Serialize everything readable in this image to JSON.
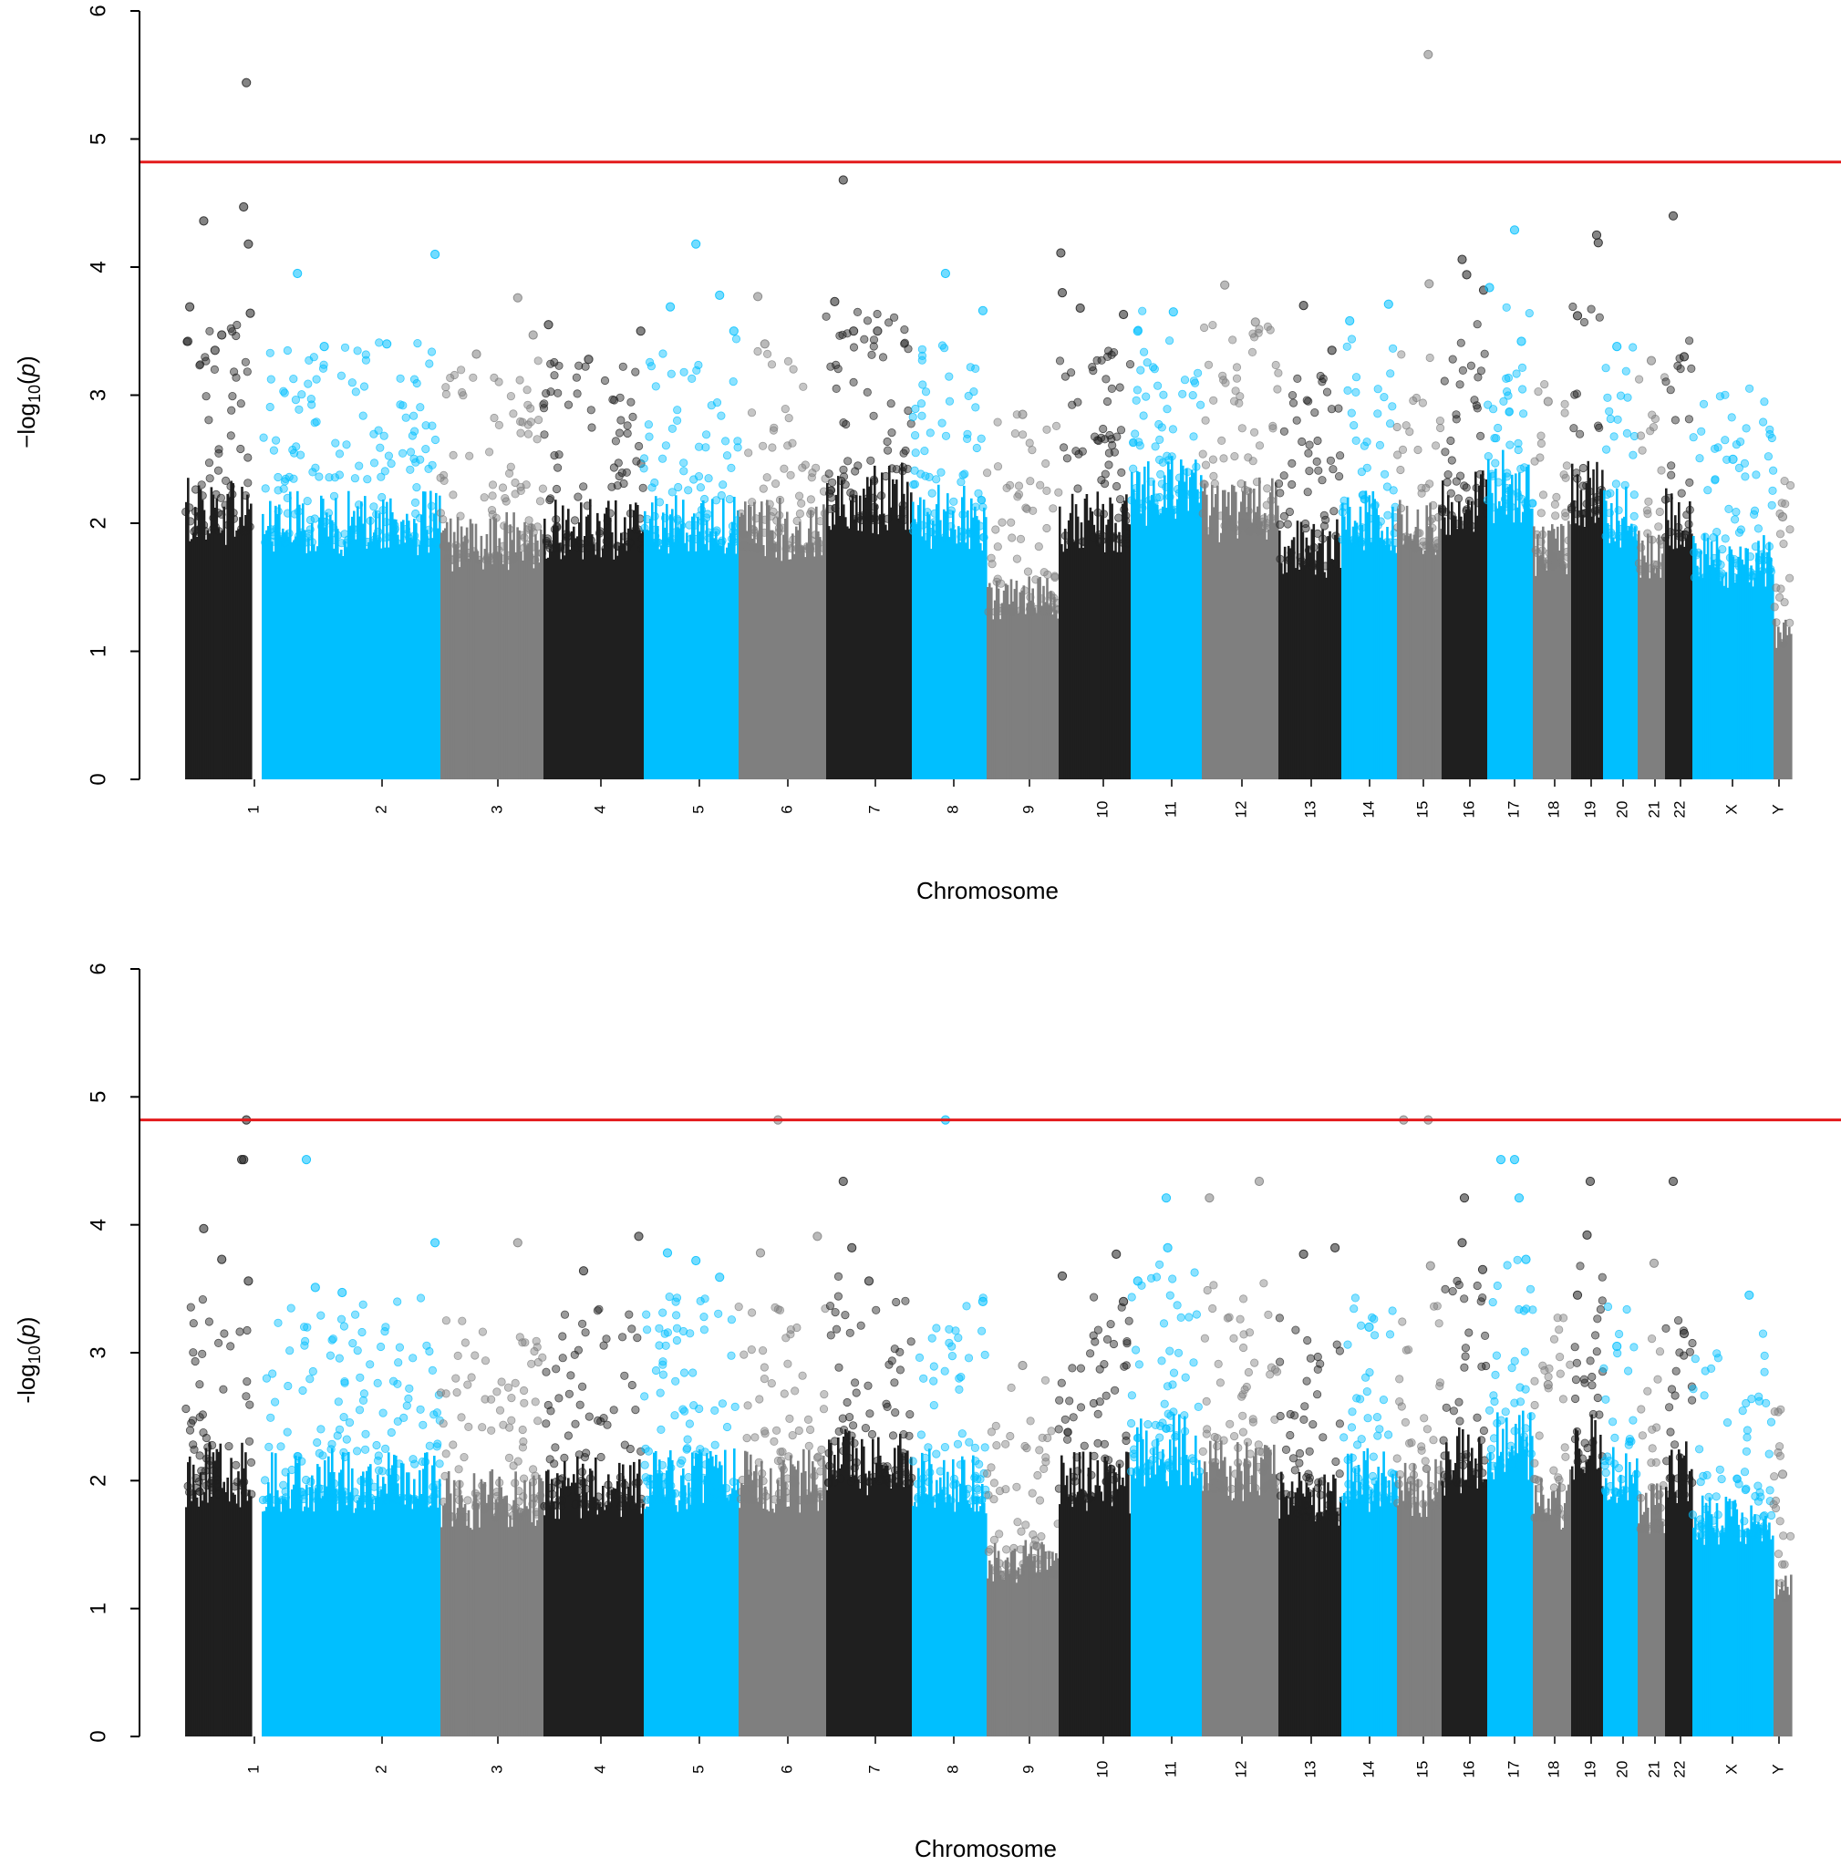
{
  "colors": {
    "black": "#1f1f1f",
    "blue": "#00bfff",
    "gray": "#7f7f7f",
    "threshold": "#e31a1c",
    "axis": "#000000"
  },
  "chart_data": [
    {
      "type": "scatter",
      "variant": "manhattan",
      "title": "",
      "xlabel": "Chromosome",
      "ylabel_prefix": "−log",
      "ylabel_sub": "10",
      "ylabel_var": "p",
      "ylim": [
        0,
        6
      ],
      "yticks": [
        "0",
        "1",
        "2",
        "3",
        "4",
        "5",
        "6"
      ],
      "threshold": 4.82,
      "chromosomes": [
        {
          "name": "1",
          "color": "black",
          "base": 2.15,
          "peaks": [
            [
              0.04,
              3.42
            ],
            [
              0.07,
              3.69
            ],
            [
              0.28,
              4.36
            ],
            [
              0.45,
              3.35
            ],
            [
              0.55,
              3.47
            ],
            [
              0.88,
              4.47
            ],
            [
              0.92,
              5.44
            ],
            [
              0.95,
              4.18
            ],
            [
              0.98,
              3.64
            ]
          ]
        },
        {
          "name": "2",
          "color": "blue",
          "base": 2.05,
          "peaks": [
            [
              0.2,
              3.95
            ],
            [
              0.35,
              3.38
            ],
            [
              0.7,
              3.4
            ],
            [
              0.97,
              4.1
            ]
          ]
        },
        {
          "name": "3",
          "color": "gray",
          "base": 1.9,
          "peaks": [
            [
              0.35,
              3.32
            ],
            [
              0.75,
              3.76
            ],
            [
              0.9,
              3.47
            ]
          ]
        },
        {
          "name": "4",
          "color": "black",
          "base": 2.0,
          "peaks": [
            [
              0.05,
              3.55
            ],
            [
              0.45,
              3.28
            ],
            [
              0.97,
              3.5
            ]
          ]
        },
        {
          "name": "5",
          "color": "blue",
          "base": 2.05,
          "peaks": [
            [
              0.28,
              3.69
            ],
            [
              0.55,
              4.18
            ],
            [
              0.8,
              3.78
            ],
            [
              0.95,
              3.5
            ]
          ]
        },
        {
          "name": "6",
          "color": "gray",
          "base": 2.0,
          "peaks": [
            [
              0.22,
              3.77
            ],
            [
              0.3,
              3.4
            ]
          ]
        },
        {
          "name": "7",
          "color": "black",
          "base": 2.25,
          "peaks": [
            [
              0.1,
              3.73
            ],
            [
              0.2,
              4.68
            ],
            [
              0.32,
              3.5
            ],
            [
              0.6,
              3.5
            ]
          ]
        },
        {
          "name": "8",
          "color": "blue",
          "base": 2.1,
          "peaks": [
            [
              0.45,
              3.95
            ],
            [
              0.95,
              3.66
            ]
          ]
        },
        {
          "name": "9",
          "color": "gray",
          "base": 1.45,
          "peaks": [
            [
              0.5,
              2.85
            ]
          ]
        },
        {
          "name": "10",
          "color": "black",
          "base": 2.05,
          "peaks": [
            [
              0.03,
              4.11
            ],
            [
              0.05,
              3.8
            ],
            [
              0.3,
              3.68
            ],
            [
              0.9,
              3.63
            ]
          ]
        },
        {
          "name": "11",
          "color": "blue",
          "base": 2.3,
          "peaks": [
            [
              0.1,
              3.5
            ],
            [
              0.6,
              3.65
            ]
          ]
        },
        {
          "name": "12",
          "color": "gray",
          "base": 2.15,
          "peaks": [
            [
              0.3,
              3.86
            ],
            [
              0.7,
              3.57
            ]
          ]
        },
        {
          "name": "13",
          "color": "black",
          "base": 1.85,
          "peaks": [
            [
              0.4,
              3.7
            ],
            [
              0.85,
              3.35
            ]
          ]
        },
        {
          "name": "14",
          "color": "blue",
          "base": 2.05,
          "peaks": [
            [
              0.15,
              3.58
            ],
            [
              0.85,
              3.71
            ]
          ]
        },
        {
          "name": "15",
          "color": "gray",
          "base": 2.0,
          "peaks": [
            [
              0.7,
              5.66
            ],
            [
              0.72,
              3.87
            ]
          ]
        },
        {
          "name": "16",
          "color": "black",
          "base": 2.2,
          "peaks": [
            [
              0.45,
              4.06
            ],
            [
              0.55,
              3.94
            ],
            [
              0.92,
              3.82
            ]
          ]
        },
        {
          "name": "17",
          "color": "blue",
          "base": 2.35,
          "peaks": [
            [
              0.05,
              3.84
            ],
            [
              0.6,
              4.29
            ],
            [
              0.75,
              3.42
            ]
          ]
        },
        {
          "name": "18",
          "color": "gray",
          "base": 1.85,
          "peaks": [
            [
              0.4,
              2.95
            ]
          ]
        },
        {
          "name": "19",
          "color": "black",
          "base": 2.3,
          "peaks": [
            [
              0.2,
              3.62
            ],
            [
              0.8,
              4.25
            ],
            [
              0.85,
              4.19
            ]
          ]
        },
        {
          "name": "20",
          "color": "blue",
          "base": 2.1,
          "peaks": [
            [
              0.4,
              3.38
            ]
          ]
        },
        {
          "name": "21",
          "color": "gray",
          "base": 1.8,
          "peaks": [
            [
              0.5,
              3.27
            ]
          ]
        },
        {
          "name": "22",
          "color": "black",
          "base": 2.1,
          "peaks": [
            [
              0.3,
              4.4
            ],
            [
              0.7,
              3.3
            ]
          ]
        },
        {
          "name": "X",
          "color": "blue",
          "base": 1.75,
          "peaks": [
            [
              0.5,
              2.5
            ]
          ]
        },
        {
          "name": "Y",
          "color": "gray",
          "base": 1.15,
          "peaks": [
            [
              0.5,
              2.05
            ]
          ]
        }
      ]
    },
    {
      "type": "scatter",
      "variant": "manhattan",
      "title": "",
      "xlabel": "Chromosome",
      "ylabel_prefix": "-log",
      "ylabel_sub": "10",
      "ylabel_var": "p",
      "ylim": [
        0,
        6
      ],
      "yticks": [
        "0",
        "1",
        "2",
        "3",
        "4",
        "5",
        "6"
      ],
      "threshold": 4.82,
      "chromosomes": [
        {
          "name": "1",
          "color": "black",
          "base": 2.1,
          "peaks": [
            [
              0.28,
              3.97
            ],
            [
              0.55,
              3.73
            ],
            [
              0.85,
              4.51
            ],
            [
              0.88,
              4.51
            ],
            [
              0.92,
              4.82
            ],
            [
              0.95,
              3.56
            ]
          ]
        },
        {
          "name": "2",
          "color": "blue",
          "base": 2.05,
          "peaks": [
            [
              0.25,
              4.51
            ],
            [
              0.3,
              3.51
            ],
            [
              0.45,
              3.47
            ],
            [
              0.97,
              3.86
            ]
          ]
        },
        {
          "name": "3",
          "color": "gray",
          "base": 1.9,
          "peaks": [
            [
              0.75,
              3.86
            ]
          ]
        },
        {
          "name": "4",
          "color": "black",
          "base": 2.0,
          "peaks": [
            [
              0.4,
              3.64
            ],
            [
              0.95,
              3.91
            ]
          ]
        },
        {
          "name": "5",
          "color": "blue",
          "base": 2.05,
          "peaks": [
            [
              0.25,
              3.78
            ],
            [
              0.55,
              3.72
            ],
            [
              0.8,
              3.59
            ]
          ]
        },
        {
          "name": "6",
          "color": "gray",
          "base": 2.05,
          "peaks": [
            [
              0.45,
              4.82
            ],
            [
              0.25,
              3.78
            ],
            [
              0.9,
              3.91
            ]
          ]
        },
        {
          "name": "7",
          "color": "black",
          "base": 2.2,
          "peaks": [
            [
              0.2,
              4.34
            ],
            [
              0.3,
              3.82
            ],
            [
              0.5,
              3.56
            ]
          ]
        },
        {
          "name": "8",
          "color": "blue",
          "base": 2.05,
          "peaks": [
            [
              0.45,
              4.82
            ],
            [
              0.95,
              3.4
            ]
          ]
        },
        {
          "name": "9",
          "color": "gray",
          "base": 1.4,
          "peaks": [
            [
              0.5,
              2.9
            ]
          ]
        },
        {
          "name": "10",
          "color": "black",
          "base": 2.05,
          "peaks": [
            [
              0.05,
              3.6
            ],
            [
              0.8,
              3.77
            ],
            [
              0.9,
              3.4
            ]
          ]
        },
        {
          "name": "11",
          "color": "blue",
          "base": 2.3,
          "peaks": [
            [
              0.5,
              4.21
            ],
            [
              0.52,
              3.82
            ],
            [
              0.1,
              3.56
            ]
          ]
        },
        {
          "name": "12",
          "color": "gray",
          "base": 2.15,
          "peaks": [
            [
              0.1,
              4.21
            ],
            [
              0.75,
              4.34
            ]
          ]
        },
        {
          "name": "13",
          "color": "black",
          "base": 1.9,
          "peaks": [
            [
              0.4,
              3.77
            ],
            [
              0.9,
              3.82
            ]
          ]
        },
        {
          "name": "14",
          "color": "blue",
          "base": 2.05,
          "peaks": [
            [
              0.5,
              3.2
            ]
          ]
        },
        {
          "name": "15",
          "color": "gray",
          "base": 2.0,
          "peaks": [
            [
              0.15,
              4.82
            ],
            [
              0.7,
              4.82
            ],
            [
              0.75,
              3.68
            ]
          ]
        },
        {
          "name": "16",
          "color": "black",
          "base": 2.2,
          "peaks": [
            [
              0.5,
              4.21
            ],
            [
              0.45,
              3.86
            ],
            [
              0.9,
              3.65
            ]
          ]
        },
        {
          "name": "17",
          "color": "blue",
          "base": 2.35,
          "peaks": [
            [
              0.3,
              4.51
            ],
            [
              0.6,
              4.51
            ],
            [
              0.7,
              4.21
            ],
            [
              0.85,
              3.73
            ]
          ]
        },
        {
          "name": "18",
          "color": "gray",
          "base": 1.9,
          "peaks": [
            [
              0.4,
              2.75
            ]
          ]
        },
        {
          "name": "19",
          "color": "black",
          "base": 2.3,
          "peaks": [
            [
              0.6,
              4.34
            ],
            [
              0.5,
              3.92
            ],
            [
              0.2,
              3.45
            ]
          ]
        },
        {
          "name": "20",
          "color": "blue",
          "base": 2.1,
          "peaks": [
            [
              0.4,
              3.05
            ]
          ]
        },
        {
          "name": "21",
          "color": "gray",
          "base": 1.8,
          "peaks": [
            [
              0.6,
              3.7
            ]
          ]
        },
        {
          "name": "22",
          "color": "black",
          "base": 2.1,
          "peaks": [
            [
              0.3,
              4.34
            ],
            [
              0.7,
              3.15
            ]
          ]
        },
        {
          "name": "X",
          "color": "blue",
          "base": 1.75,
          "peaks": [
            [
              0.7,
              3.45
            ]
          ]
        },
        {
          "name": "Y",
          "color": "gray",
          "base": 1.15,
          "peaks": [
            [
              0.5,
              2.05
            ]
          ]
        }
      ]
    }
  ]
}
